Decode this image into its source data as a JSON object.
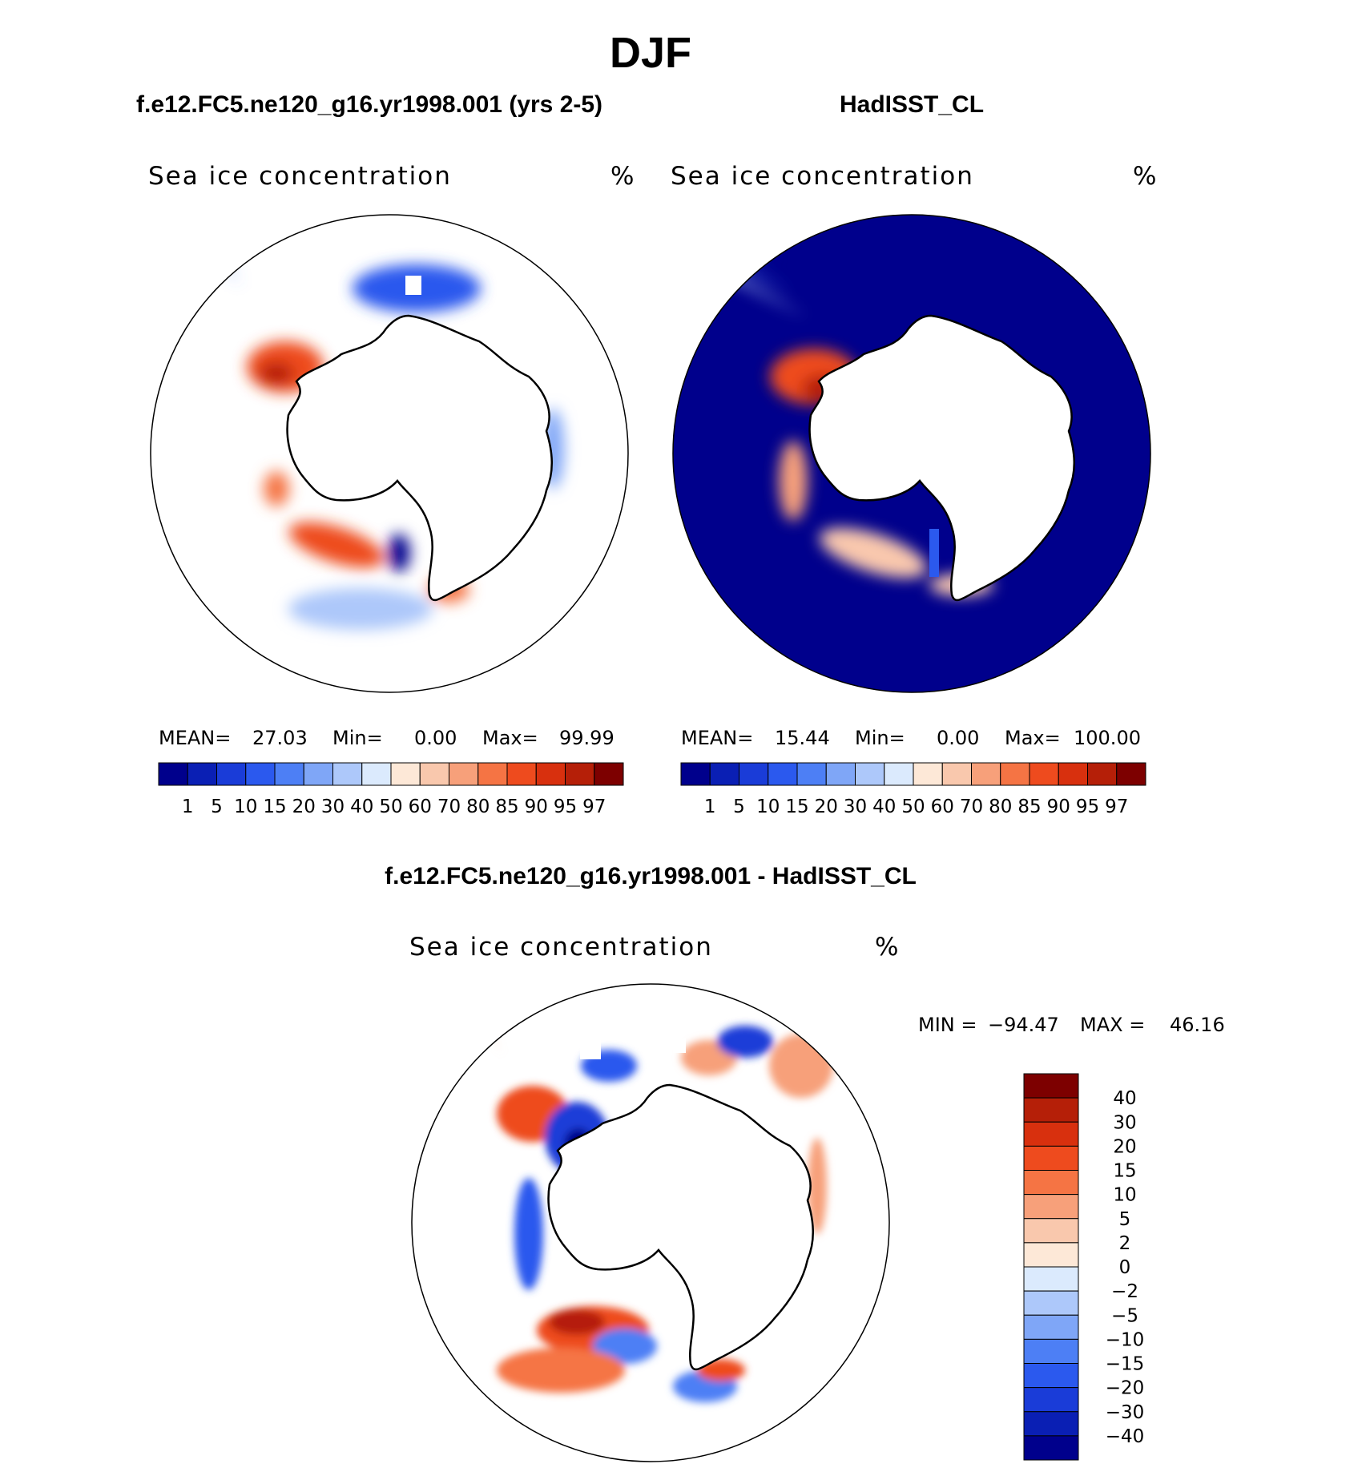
{
  "page_title": "DJF",
  "panels": [
    {
      "id": "model",
      "case_title": "f.e12.FC5.ne120_g16.yr1998.001 (yrs 2-5)",
      "variable": "Sea ice concentration",
      "units": "%",
      "stats": {
        "mean_label": "MEAN=",
        "mean": "27.03",
        "min_label": "Min=",
        "min": "0.00",
        "max_label": "Max=",
        "max": "99.99"
      },
      "ocean_fill": false
    },
    {
      "id": "obs",
      "case_title": "HadISST_CL",
      "variable": "Sea ice concentration",
      "units": "%",
      "stats": {
        "mean_label": "MEAN=",
        "mean": "15.44",
        "min_label": "Min=",
        "min": "0.00",
        "max_label": "Max=",
        "max": "100.00"
      },
      "ocean_fill": true
    }
  ],
  "abs_colorbar": {
    "levels": [
      "1",
      "5",
      "10",
      "15",
      "20",
      "30",
      "40",
      "50",
      "60",
      "70",
      "80",
      "85",
      "90",
      "95",
      "97"
    ],
    "colors": [
      "#00008c",
      "#0a1fb4",
      "#1a3cd8",
      "#2b59ee",
      "#4d7ff5",
      "#7fa6f7",
      "#adc8fa",
      "#dbeafd",
      "#fde8d7",
      "#f9c8ad",
      "#f7a07a",
      "#f57444",
      "#ee4b1e",
      "#d8300e",
      "#b51f08",
      "#7d0000"
    ]
  },
  "diff_panel": {
    "case_title": "f.e12.FC5.ne120_g16.yr1998.001 - HadISST_CL",
    "variable": "Sea ice concentration",
    "units": "%",
    "stats": {
      "min_label": "MIN =",
      "min": "−94.47",
      "max_label": "MAX =",
      "max": "46.16"
    }
  },
  "diff_colorbar": {
    "levels": [
      "40",
      "30",
      "20",
      "15",
      "10",
      "5",
      "2",
      "0",
      "−2",
      "−5",
      "−10",
      "−15",
      "−20",
      "−30",
      "−40"
    ],
    "colors": [
      "#7d0000",
      "#b51f08",
      "#d8300e",
      "#ee4b1e",
      "#f57444",
      "#f7a07a",
      "#f9c8ad",
      "#fde8d7",
      "#dbeafd",
      "#adc8fa",
      "#7fa6f7",
      "#4d7ff5",
      "#2b59ee",
      "#1a3cd8",
      "#0a1fb4",
      "#00008c"
    ]
  }
}
